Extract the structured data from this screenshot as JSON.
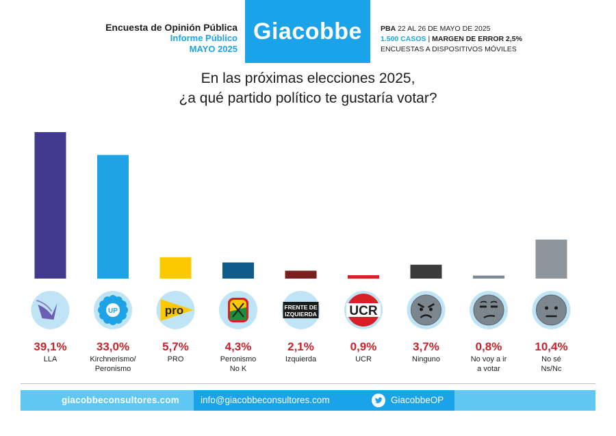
{
  "header": {
    "line1": "Encuesta de Opinión Pública",
    "line2": "Informe Público",
    "line3": "MAYO 2025",
    "brand": "Giacobbe",
    "meta_place": "PBA",
    "meta_dates": " 22 AL 26 DE MAYO DE 2025",
    "meta_cases": "1.500 CASOS",
    "meta_sep": " | ",
    "meta_error": "MARGEN DE ERROR 2,5%",
    "meta_method": "ENCUESTAS A DISPOSITIVOS MÓVILES"
  },
  "footer": {
    "website": "giacobbeconsultores.com",
    "email": "info@giacobbeconsultores.com",
    "twitter": "GiacobbeOP"
  },
  "chart_data": {
    "type": "bar",
    "title": "En las próximas elecciones 2025, ¿a qué partido político te gustaría votar?",
    "title_lines": [
      "En las próximas elecciones 2025,",
      "¿a qué partido político te gustaría votar?"
    ],
    "categories": [
      {
        "label": "LLA",
        "value": 39.1,
        "value_label": "39,1%",
        "color": "#413a8f",
        "icon": "lla-eagle-icon",
        "icon_text": ""
      },
      {
        "label": "Kirchnerismo/\nPeronismo",
        "value": 33.0,
        "value_label": "33,0%",
        "color": "#1ea4e6",
        "icon": "up-sun-icon",
        "icon_text": "UP"
      },
      {
        "label": "PRO",
        "value": 5.7,
        "value_label": "5,7%",
        "color": "#fcc800",
        "icon": "pro-logo-icon",
        "icon_text": "pro"
      },
      {
        "label": "Peronismo\nNo K",
        "value": 4.3,
        "value_label": "4,3%",
        "color": "#0f5b8c",
        "icon": "peronist-shield-icon",
        "icon_text": ""
      },
      {
        "label": "Izquierda",
        "value": 2.1,
        "value_label": "2,1%",
        "color": "#7a1e1e",
        "icon": "fit-logo-icon",
        "icon_text": "FRENTE DE\nIZQUIERDA"
      },
      {
        "label": "UCR",
        "value": 0.9,
        "value_label": "0,9%",
        "color": "#d71f26",
        "icon": "ucr-logo-icon",
        "icon_text": "UCR"
      },
      {
        "label": "Ninguno",
        "value": 3.7,
        "value_label": "3,7%",
        "color": "#3b3b3b",
        "icon": "angry-face-icon",
        "icon_text": ""
      },
      {
        "label": "No voy a ir\na votar",
        "value": 0.8,
        "value_label": "0,8%",
        "color": "#7f8a96",
        "icon": "unamused-face-icon",
        "icon_text": ""
      },
      {
        "label": "No sé\nNs/Nc",
        "value": 10.4,
        "value_label": "10,4%",
        "color": "#8c959c",
        "icon": "neutral-face-icon",
        "icon_text": ""
      }
    ],
    "ylim": [
      0,
      39.1
    ],
    "value_color": "#c9242b"
  }
}
